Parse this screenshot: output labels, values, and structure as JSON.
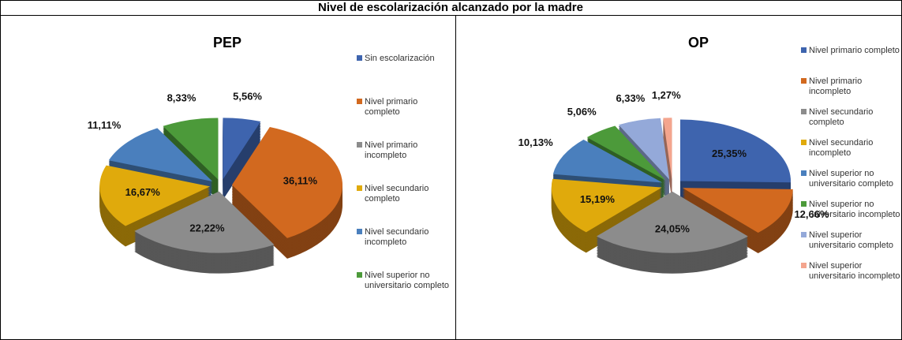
{
  "title": "Nivel de escolarización alcanzado por la madre",
  "chart_data": [
    {
      "type": "pie",
      "title": "PEP",
      "categories": [
        "Sin escolarización",
        "Nivel primario completo",
        "Nivel primario incompleto",
        "Nivel secundario completo",
        "Nivel secundario incompleto",
        "Nivel superior no universitario completo"
      ],
      "values": [
        5.56,
        36.11,
        22.22,
        16.67,
        11.11,
        8.33
      ],
      "value_labels": [
        "5,56%",
        "36,11%",
        "22,22%",
        "16,67%",
        "11,11%",
        "8,33%"
      ],
      "colors": [
        "#3e64ae",
        "#d2691f",
        "#8c8c8c",
        "#e0aa0c",
        "#4a7fbd",
        "#4c9a3a"
      ]
    },
    {
      "type": "pie",
      "title": "OP",
      "categories": [
        "Nivel primario completo",
        "Nivel primario incompleto",
        "Nivel secundario completo",
        "Nivel secundario incompleto",
        "Nivel superior no universitario completo",
        "Nivel superior no universitario incompleto",
        "Nivel superior universitario completo",
        "Nivel superior universitario incompleto"
      ],
      "values": [
        25.35,
        12.66,
        24.05,
        15.19,
        10.13,
        5.06,
        6.33,
        1.27
      ],
      "value_labels": [
        "25,35%",
        "12,66%",
        "24,05%",
        "15,19%",
        "10,13%",
        "5,06%",
        "6,33%",
        "1,27%"
      ],
      "colors": [
        "#3e64ae",
        "#d2691f",
        "#8c8c8c",
        "#e0aa0c",
        "#4a7fbd",
        "#4c9a3a",
        "#94a9d9",
        "#f4a58e"
      ]
    }
  ]
}
